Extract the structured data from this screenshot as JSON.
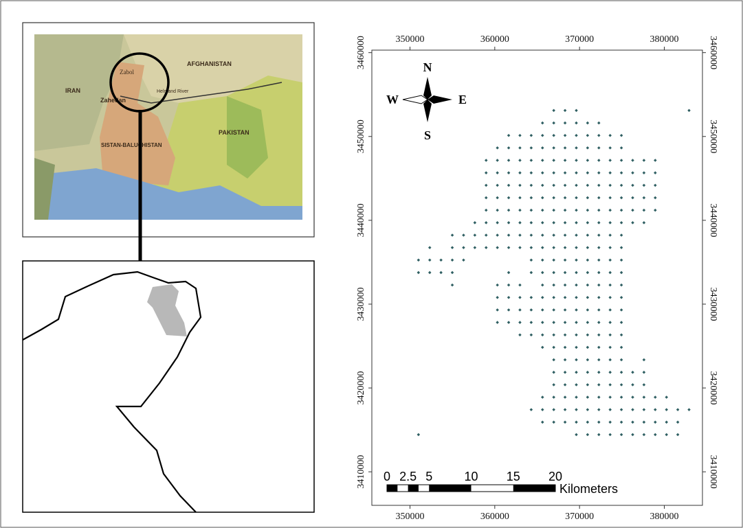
{
  "inset_map": {
    "labels": {
      "country_afghanistan": "AFGHANISTAN",
      "country_iran": "IRAN",
      "country_pakistan": "PAKISTAN",
      "city_zabol": "Zabol",
      "city_zahedan": "Zahedan",
      "river": "Helmand River",
      "province": "SISTAN-BALUCHISTAN"
    }
  },
  "chart_data": {
    "type": "scatter",
    "xlim": [
      345500,
      384500
    ],
    "ylim": [
      3406000,
      3460300
    ],
    "xticks": [
      350000,
      360000,
      370000,
      380000
    ],
    "yticks": [
      3410000,
      3420000,
      3430000,
      3440000,
      3450000,
      3460000
    ],
    "compass": {
      "north": "N",
      "south": "S",
      "east": "E",
      "west": "W"
    },
    "scale_bar": {
      "marks": [
        0,
        2.5,
        5,
        10,
        15,
        20
      ],
      "unit": "Kilometers"
    },
    "color": "#2f5f62",
    "rows": [
      {
        "y": 3453100,
        "x": [
          366960,
          368290,
          369620,
          382920
        ]
      },
      {
        "y": 3451613,
        "x": [
          365630,
          366960,
          368290,
          369620,
          370950,
          372280
        ]
      },
      {
        "y": 3450126,
        "x": [
          361640,
          362970,
          364300,
          365630,
          366960,
          368290,
          369620,
          370950,
          372280,
          373610,
          374940
        ]
      },
      {
        "y": 3448639,
        "x": [
          360310,
          361640,
          362970,
          364300,
          365630,
          366960,
          368290,
          369620,
          370950,
          372280,
          373610,
          374940
        ]
      },
      {
        "y": 3447152,
        "x": [
          358980,
          360310,
          361640,
          362970,
          364300,
          365630,
          366960,
          368290,
          369620,
          370950,
          372280,
          373610,
          374940,
          376270,
          377600,
          378930
        ]
      },
      {
        "y": 3445665,
        "x": [
          358980,
          360310,
          361640,
          362970,
          364300,
          365630,
          366960,
          368290,
          369620,
          370950,
          372280,
          373610,
          374940,
          376270,
          377600,
          378930
        ]
      },
      {
        "y": 3444178,
        "x": [
          358980,
          360310,
          361640,
          362970,
          364300,
          365630,
          366960,
          368290,
          369620,
          370950,
          372280,
          373610,
          374940,
          376270,
          377600,
          378930
        ]
      },
      {
        "y": 3442691,
        "x": [
          358980,
          360310,
          361640,
          362970,
          364300,
          365630,
          366960,
          368290,
          369620,
          370950,
          372280,
          373610,
          374940,
          376270,
          377600,
          378930
        ]
      },
      {
        "y": 3441204,
        "x": [
          358980,
          360310,
          361640,
          362970,
          364300,
          365630,
          366960,
          368290,
          369620,
          370950,
          372280,
          373610,
          374940,
          376270,
          377600,
          378930
        ]
      },
      {
        "y": 3439717,
        "x": [
          357650,
          358980,
          360310,
          361640,
          362970,
          364300,
          365630,
          366960,
          368290,
          369620,
          370950,
          372280,
          373610,
          374940,
          376270,
          377600
        ]
      },
      {
        "y": 3438230,
        "x": [
          354990,
          356320,
          357650,
          358980,
          360310,
          361640,
          362970,
          364300,
          365630,
          366960,
          368290,
          369620,
          370950,
          372280,
          373610,
          374940
        ]
      },
      {
        "y": 3436743,
        "x": [
          352330,
          354990,
          356320,
          357650,
          358980,
          360310,
          361640,
          362970,
          364300,
          365630,
          366960,
          368290,
          369620,
          370950,
          372280,
          373610,
          374940
        ]
      },
      {
        "y": 3435256,
        "x": [
          351000,
          352330,
          353660,
          354990,
          356320,
          364300,
          365630,
          366960,
          368290,
          369620,
          370950,
          372280,
          373610,
          374940
        ]
      },
      {
        "y": 3433769,
        "x": [
          351000,
          352330,
          353660,
          354990,
          361640,
          364300,
          365630,
          366960,
          368290,
          369620,
          370950,
          372280,
          373610,
          374940
        ]
      },
      {
        "y": 3432282,
        "x": [
          354990,
          360310,
          361640,
          362970,
          365630,
          366960,
          368290,
          369620,
          370950,
          372280,
          373610,
          374940
        ]
      },
      {
        "y": 3430795,
        "x": [
          360310,
          361640,
          362970,
          364300,
          365630,
          366960,
          368290,
          369620,
          370950,
          372280,
          373610,
          374940
        ]
      },
      {
        "y": 3429308,
        "x": [
          360310,
          361640,
          362970,
          364300,
          365630,
          366960,
          368290,
          369620,
          370950,
          372280,
          373610,
          374940
        ]
      },
      {
        "y": 3427821,
        "x": [
          360310,
          361640,
          362970,
          364300,
          365630,
          366960,
          368290,
          369620,
          370950,
          372280,
          373610,
          374940
        ]
      },
      {
        "y": 3426334,
        "x": [
          362970,
          364300,
          365630,
          366960,
          368290,
          369620,
          370950,
          372280,
          373610,
          374940
        ]
      },
      {
        "y": 3424847,
        "x": [
          365630,
          366960,
          368290,
          369620,
          370950,
          372280,
          373610,
          374940
        ]
      },
      {
        "y": 3423360,
        "x": [
          366960,
          368290,
          369620,
          370950,
          372280,
          373610,
          374940,
          377600
        ]
      },
      {
        "y": 3421873,
        "x": [
          366960,
          368290,
          369620,
          370950,
          372280,
          373610,
          374940,
          376270,
          377600
        ]
      },
      {
        "y": 3420386,
        "x": [
          366960,
          368290,
          369620,
          370950,
          372280,
          373610,
          374940,
          376270,
          377600
        ]
      },
      {
        "y": 3418899,
        "x": [
          365630,
          366960,
          368290,
          369620,
          370950,
          372280,
          373610,
          374940,
          376270,
          377600,
          378930,
          380260
        ]
      },
      {
        "y": 3417412,
        "x": [
          364300,
          365630,
          366960,
          368290,
          369620,
          370950,
          372280,
          373610,
          374940,
          376270,
          377600,
          378930,
          380260,
          381590,
          382920
        ]
      },
      {
        "y": 3415925,
        "x": [
          365630,
          366960,
          368290,
          369620,
          370950,
          372280,
          373610,
          374940,
          376270,
          377600,
          378930,
          380260,
          381590
        ]
      },
      {
        "y": 3414438,
        "x": [
          351000,
          369620,
          370950,
          372280,
          373610,
          374940,
          376270,
          377600,
          378930,
          380260,
          381590
        ]
      }
    ]
  }
}
